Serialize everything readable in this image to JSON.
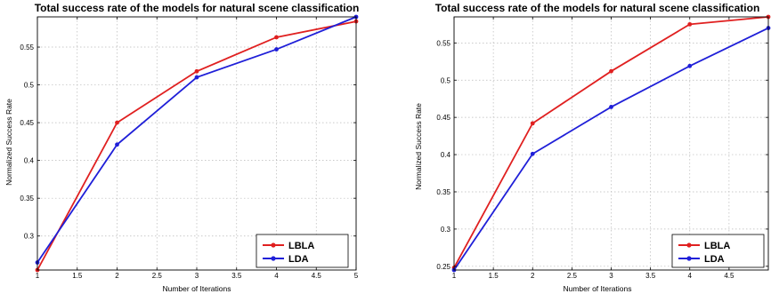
{
  "chart_data": [
    {
      "type": "line",
      "title": "Total success rate of the models for natural scene classification",
      "xlabel": "Number of Iterations",
      "ylabel": "Normalized Success Rate",
      "xlim": [
        1,
        5
      ],
      "ylim": [
        0.255,
        0.59
      ],
      "xticks": [
        "1",
        "1.5",
        "2",
        "2.5",
        "3",
        "3.5",
        "4",
        "4.5",
        "5"
      ],
      "xtick_values": [
        1,
        1.5,
        2,
        2.5,
        3,
        3.5,
        4,
        4.5,
        5
      ],
      "yticks": [
        "0.3",
        "0.35",
        "0.4",
        "0.45",
        "0.5",
        "0.55"
      ],
      "ytick_values": [
        0.3,
        0.35,
        0.4,
        0.45,
        0.5,
        0.55
      ],
      "grid": true,
      "legend_position": "bottom-right",
      "x": [
        1,
        2,
        3,
        4,
        5
      ],
      "series": [
        {
          "name": "LBLA",
          "color": "#e02020",
          "values": [
            0.255,
            0.45,
            0.518,
            0.563,
            0.584
          ]
        },
        {
          "name": "LDA",
          "color": "#1f1fd8",
          "values": [
            0.265,
            0.421,
            0.51,
            0.547,
            0.59
          ]
        }
      ]
    },
    {
      "type": "line",
      "title": "Total success rate of the models for natural scene classification",
      "xlabel": "Number of Iterations",
      "ylabel": "Normalized Success Rate",
      "xlim": [
        1,
        5
      ],
      "ylim": [
        0.245,
        0.585
      ],
      "xticks": [
        "1",
        "1.5",
        "2",
        "2.5",
        "3",
        "3.5",
        "4",
        "4.5"
      ],
      "xtick_values": [
        1,
        1.5,
        2,
        2.5,
        3,
        3.5,
        4,
        4.5
      ],
      "yticks": [
        "0.25",
        "0.3",
        "0.35",
        "0.4",
        "0.45",
        "0.5",
        "0.55"
      ],
      "ytick_values": [
        0.25,
        0.3,
        0.35,
        0.4,
        0.45,
        0.5,
        0.55
      ],
      "grid": true,
      "legend_position": "bottom-right",
      "x": [
        1,
        2,
        3,
        4,
        5
      ],
      "series": [
        {
          "name": "LBLA",
          "color": "#e02020",
          "values": [
            0.248,
            0.442,
            0.512,
            0.575,
            0.585
          ]
        },
        {
          "name": "LDA",
          "color": "#1f1fd8",
          "values": [
            0.245,
            0.401,
            0.464,
            0.519,
            0.57
          ]
        }
      ]
    }
  ]
}
